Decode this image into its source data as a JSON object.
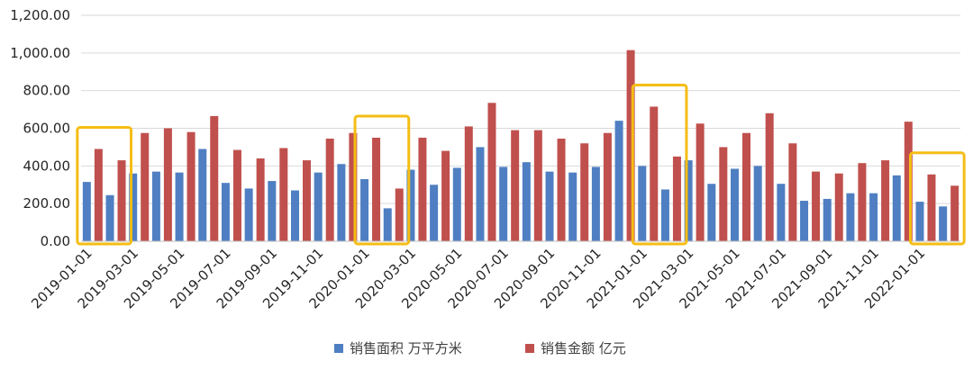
{
  "chart_data": {
    "type": "bar",
    "title": "",
    "xlabel": "",
    "ylabel": "",
    "ylim": [
      0,
      1200
    ],
    "yticks": [
      "0.00",
      "200.00",
      "400.00",
      "600.00",
      "800.00",
      "1,000.00",
      "1,200.00"
    ],
    "grid": true,
    "legend_position": "bottom",
    "categories": [
      "2019-01-01",
      "2019-02-01",
      "2019-03-01",
      "2019-04-01",
      "2019-05-01",
      "2019-06-01",
      "2019-07-01",
      "2019-08-01",
      "2019-09-01",
      "2019-10-01",
      "2019-11-01",
      "2019-12-01",
      "2020-01-01",
      "2020-02-01",
      "2020-03-01",
      "2020-04-01",
      "2020-05-01",
      "2020-06-01",
      "2020-07-01",
      "2020-08-01",
      "2020-09-01",
      "2020-10-01",
      "2020-11-01",
      "2020-12-01",
      "2021-01-01",
      "2021-02-01",
      "2021-03-01",
      "2021-04-01",
      "2021-05-01",
      "2021-06-01",
      "2021-07-01",
      "2021-08-01",
      "2021-09-01",
      "2021-10-01",
      "2021-11-01",
      "2021-12-01",
      "2022-01-01",
      "2022-02-01"
    ],
    "tick_labels": [
      "2019-01-01",
      "2019-03-01",
      "2019-05-01",
      "2019-07-01",
      "2019-09-01",
      "2019-11-01",
      "2020-01-01",
      "2020-03-01",
      "2020-05-01",
      "2020-07-01",
      "2020-09-01",
      "2020-11-01",
      "2021-01-01",
      "2021-03-01",
      "2021-05-01",
      "2021-07-01",
      "2021-09-01",
      "2021-11-01",
      "2022-01-01"
    ],
    "series": [
      {
        "name": "销售面积 万平方米",
        "color": "#4F7FC2",
        "values": [
          315,
          245,
          360,
          370,
          365,
          490,
          310,
          280,
          320,
          270,
          365,
          410,
          330,
          175,
          380,
          300,
          390,
          500,
          395,
          420,
          370,
          365,
          395,
          640,
          400,
          275,
          430,
          305,
          385,
          400,
          305,
          215,
          225,
          255,
          255,
          350,
          210,
          185
        ]
      },
      {
        "name": "销售金额 亿元",
        "color": "#C0504D",
        "values": [
          490,
          430,
          575,
          600,
          580,
          665,
          485,
          440,
          495,
          430,
          545,
          575,
          550,
          280,
          550,
          480,
          610,
          735,
          590,
          590,
          545,
          520,
          575,
          1015,
          715,
          450,
          625,
          500,
          575,
          680,
          520,
          370,
          360,
          415,
          430,
          635,
          355,
          295
        ]
      }
    ],
    "highlight_color": "#F5BD14",
    "highlights": [
      {
        "from": "2019-01-01",
        "to": "2019-02-01"
      },
      {
        "from": "2020-01-01",
        "to": "2020-02-01"
      },
      {
        "from": "2021-01-01",
        "to": "2021-02-01"
      },
      {
        "from": "2022-01-01",
        "to": "2022-02-01"
      }
    ]
  }
}
